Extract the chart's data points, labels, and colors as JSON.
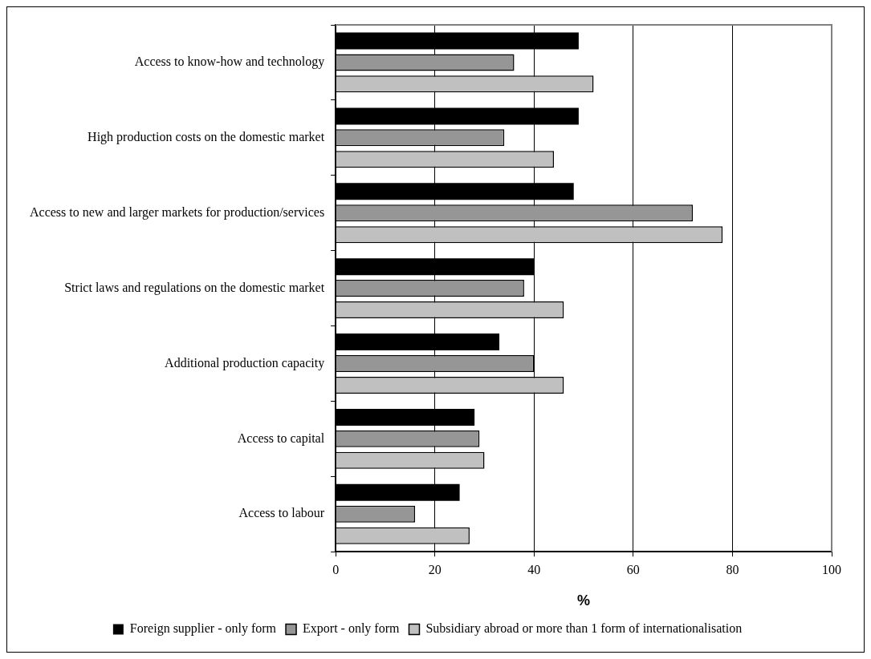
{
  "chart_data": {
    "type": "bar",
    "orientation": "horizontal",
    "xlabel": "%",
    "categories": [
      "Access to know-how and technology",
      "High production costs on the domestic market",
      "Access to new and larger markets for production/services",
      "Strict laws and regulations on the domestic market",
      "Additional production capacity",
      "Access to capital",
      "Access to labour"
    ],
    "series": [
      {
        "name": "Foreign supplier - only form",
        "color": "#000000",
        "values": [
          49,
          49,
          48,
          40,
          33,
          28,
          25
        ]
      },
      {
        "name": "Export - only form",
        "color": "#969696",
        "values": [
          36,
          34,
          72,
          38,
          40,
          29,
          16
        ]
      },
      {
        "name": "Subsidiary abroad or more than 1 form of internationalisation",
        "color": "#c0c0c0",
        "values": [
          52,
          44,
          78,
          46,
          46,
          30,
          27
        ]
      }
    ],
    "xlim": [
      0,
      100
    ],
    "xticks": [
      0,
      20,
      40,
      60,
      80,
      100
    ],
    "grid": "x",
    "legend": "bottom"
  }
}
